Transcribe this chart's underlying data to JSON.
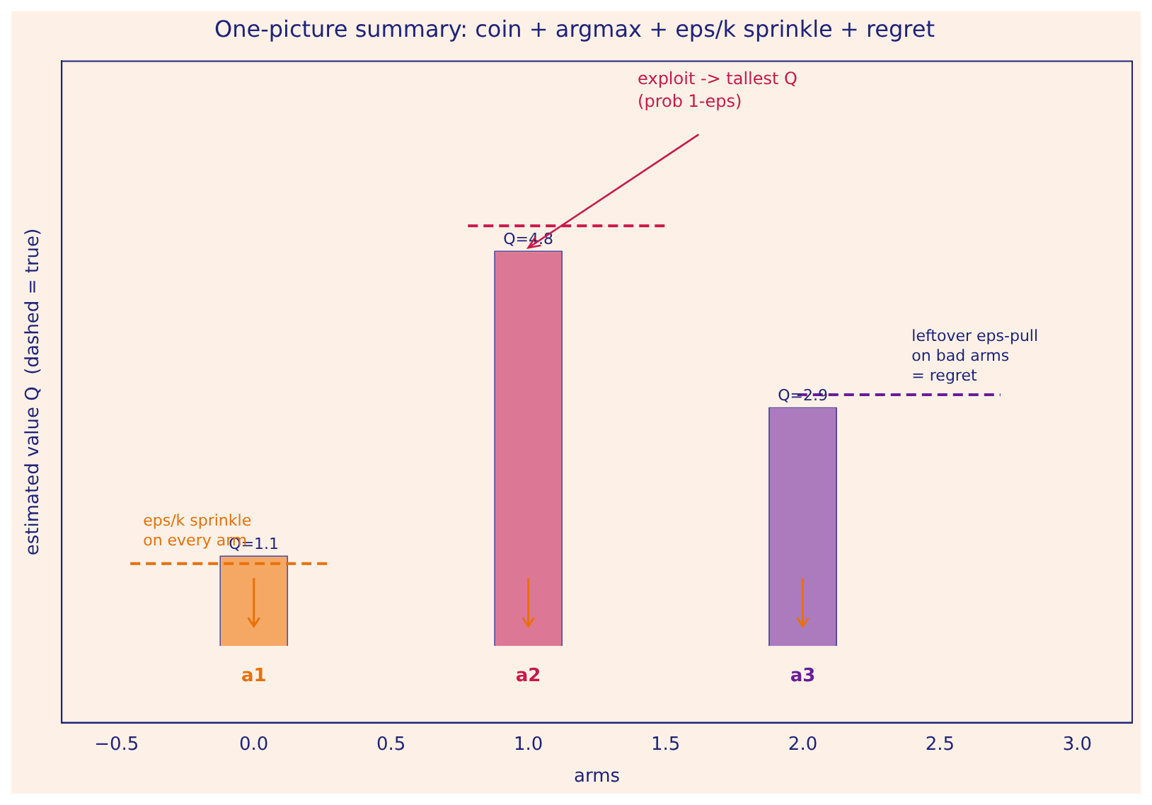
{
  "chart_data": {
    "type": "bar",
    "title": "One-picture summary: coin + argmax + eps/k sprinkle + regret",
    "xlabel": "arms",
    "ylabel": "estimated value Q  (dashed = true)",
    "x": [
      0,
      1,
      2
    ],
    "values": [
      1.1,
      4.8,
      2.9
    ],
    "colors": [
      "#f5a864",
      "#dc7896",
      "#ab7bbd"
    ],
    "value_labels": [
      "Q=1.1",
      "Q=4.8",
      "Q=2.9"
    ],
    "series": [
      {
        "type": "line",
        "x": [
          -0.45,
          0.28
        ],
        "values": [
          1.0,
          1.0
        ],
        "color": "#e8700a",
        "line_style": "dashed",
        "marker": "none"
      },
      {
        "type": "line",
        "x": [
          0.78,
          1.5
        ],
        "values": [
          5.1,
          5.1
        ],
        "color": "#c8184a",
        "line_style": "dashed",
        "marker": "none"
      },
      {
        "type": "line",
        "x": [
          1.98,
          2.72
        ],
        "values": [
          3.05,
          3.05
        ],
        "color": "#6a1b9a",
        "line_style": "dashed",
        "marker": "none"
      }
    ],
    "annotations": [
      "exploit -> tallest Q\n(prob 1-eps)",
      "eps/k sprinkle\non every arm",
      "leftover eps-pull\non bad arms\n= regret",
      "a1",
      "a2",
      "a3"
    ],
    "xlim": [
      -0.7,
      3.2
    ],
    "xticks": [
      {
        "value": -0.5,
        "label": "−0.5"
      },
      {
        "value": 0,
        "label": "0.0"
      },
      {
        "value": 0.5,
        "label": "0.5"
      },
      {
        "value": 1,
        "label": "1.0"
      },
      {
        "value": 1.5,
        "label": "1.5"
      },
      {
        "value": 2,
        "label": "2.0"
      },
      {
        "value": 2.5,
        "label": "2.5"
      },
      {
        "value": 3,
        "label": "3.0"
      }
    ],
    "ylim": [
      -0.93,
      7.1
    ],
    "tick_labels": "x",
    "grid": false,
    "legend": false
  }
}
